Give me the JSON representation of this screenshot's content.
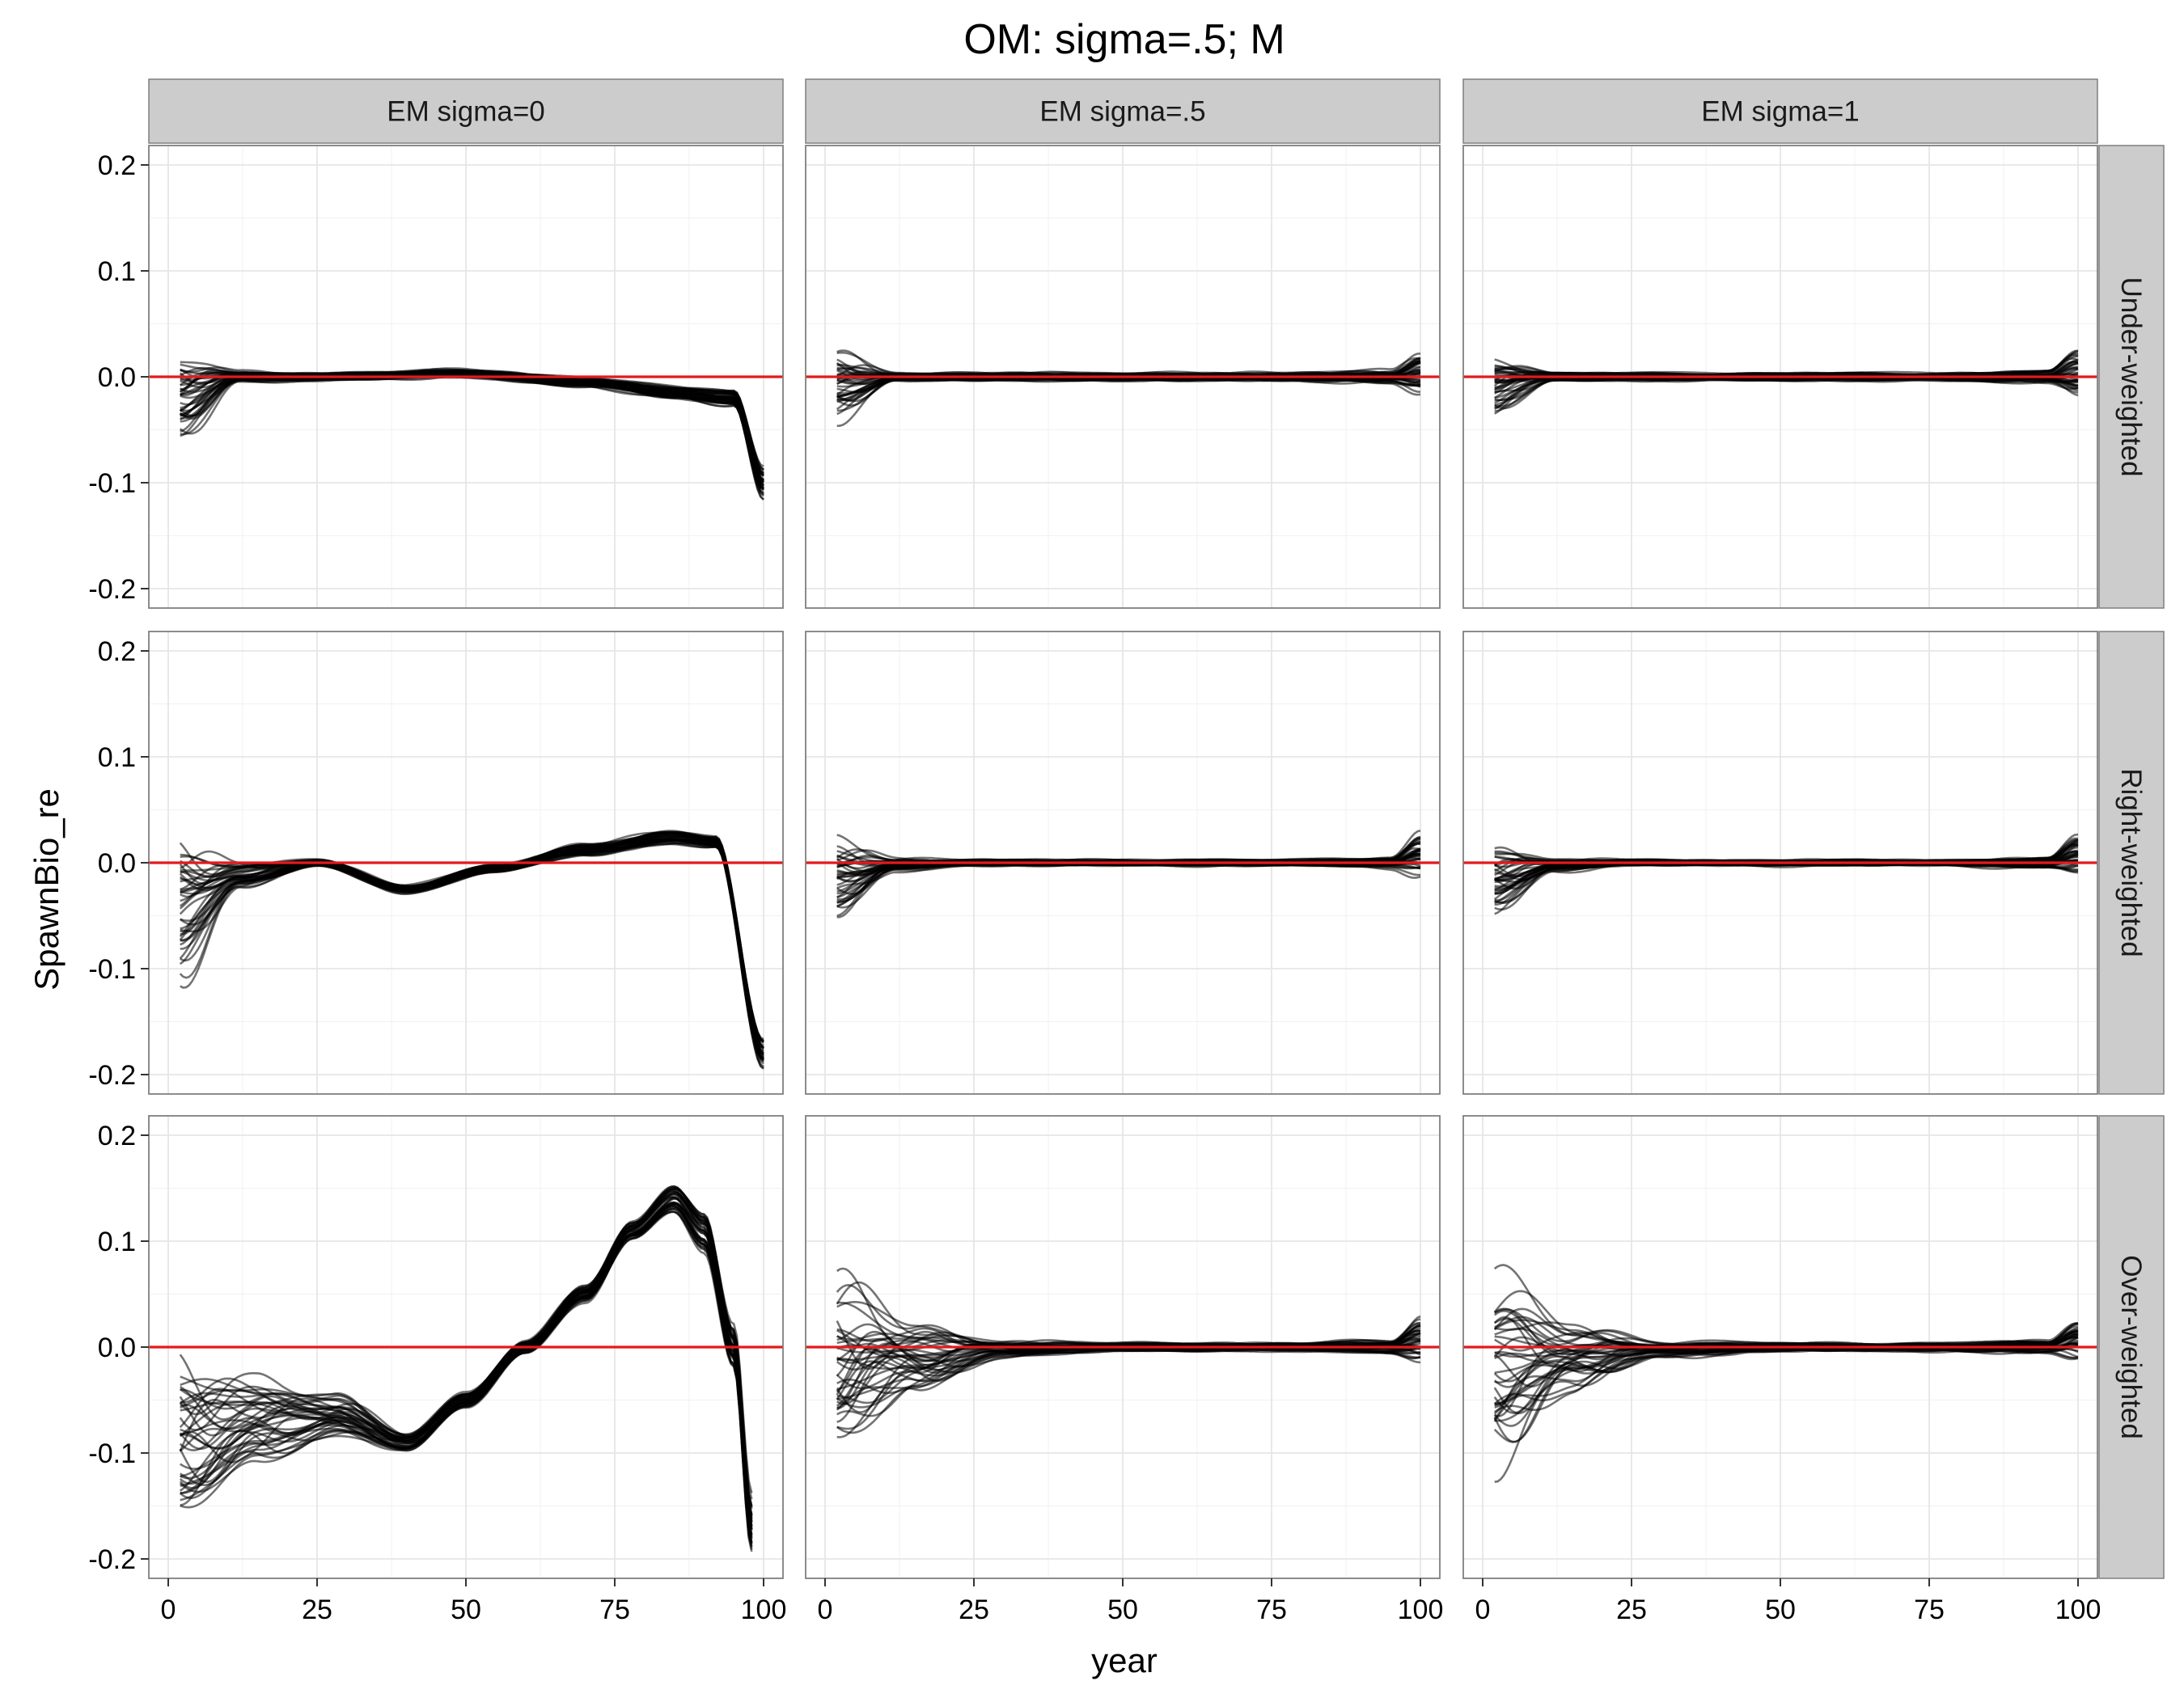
{
  "chart_data": {
    "type": "line",
    "title": "OM: sigma=.5; M",
    "xlabel": "year",
    "ylabel": "SpawnBio_re",
    "xlim": [
      0,
      100
    ],
    "ylim": [
      -0.2,
      0.2
    ],
    "x_ticks": [
      "0",
      "25",
      "50",
      "75",
      "100"
    ],
    "y_ticks": [
      "-0.2",
      "-0.1",
      "0.0",
      "0.1",
      "0.2"
    ],
    "column_facets": [
      "EM sigma=0",
      "EM sigma=.5",
      "EM sigma=1"
    ],
    "row_facets": [
      "Under-weighted",
      "Right-weighted",
      "Over-weighted"
    ],
    "reference_line": {
      "y": 0,
      "color": "#e41a1c"
    },
    "line_color": "#000000",
    "line_opacity": 0.55,
    "grid": true,
    "panels": [
      {
        "row": "Under-weighted",
        "col": "EM sigma=0",
        "knots_x": [
          2,
          12,
          25,
          50,
          70,
          85,
          95,
          100
        ],
        "center": [
          -0.02,
          0.0,
          0.0,
          0.003,
          -0.005,
          -0.015,
          -0.02,
          -0.1
        ],
        "spread": [
          0.04,
          0.005,
          0.004,
          0.004,
          0.005,
          0.006,
          0.008,
          0.015
        ]
      },
      {
        "row": "Under-weighted",
        "col": "EM sigma=.5",
        "knots_x": [
          2,
          12,
          25,
          50,
          75,
          95,
          100
        ],
        "center": [
          -0.008,
          0.0,
          0.0,
          0.0,
          0.0,
          0.0,
          0.004
        ],
        "spread": [
          0.03,
          0.004,
          0.004,
          0.004,
          0.004,
          0.006,
          0.02
        ]
      },
      {
        "row": "Under-weighted",
        "col": "EM sigma=1",
        "knots_x": [
          2,
          12,
          25,
          50,
          75,
          95,
          100
        ],
        "center": [
          -0.008,
          0.0,
          0.0,
          0.0,
          0.0,
          0.0,
          0.005
        ],
        "spread": [
          0.03,
          0.004,
          0.004,
          0.004,
          0.004,
          0.006,
          0.02
        ]
      },
      {
        "row": "Right-weighted",
        "col": "EM sigma=0",
        "knots_x": [
          2,
          12,
          25,
          40,
          55,
          70,
          85,
          92,
          100
        ],
        "center": [
          -0.045,
          -0.012,
          0.0,
          -0.025,
          -0.005,
          0.012,
          0.024,
          0.02,
          -0.18
        ],
        "spread": [
          0.06,
          0.012,
          0.004,
          0.004,
          0.004,
          0.006,
          0.006,
          0.006,
          0.015
        ]
      },
      {
        "row": "Right-weighted",
        "col": "EM sigma=.5",
        "knots_x": [
          2,
          12,
          25,
          50,
          75,
          95,
          100
        ],
        "center": [
          -0.015,
          -0.002,
          0.0,
          0.0,
          0.0,
          0.0,
          0.008
        ],
        "spread": [
          0.035,
          0.006,
          0.003,
          0.003,
          0.003,
          0.005,
          0.018
        ]
      },
      {
        "row": "Right-weighted",
        "col": "EM sigma=1",
        "knots_x": [
          2,
          12,
          25,
          50,
          75,
          95,
          100
        ],
        "center": [
          -0.015,
          -0.002,
          0.0,
          0.0,
          0.0,
          0.0,
          0.008
        ],
        "spread": [
          0.035,
          0.006,
          0.003,
          0.003,
          0.003,
          0.005,
          0.018
        ]
      },
      {
        "row": "Over-weighted",
        "col": "EM sigma=0",
        "knots_x": [
          2,
          15,
          28,
          40,
          50,
          60,
          70,
          78,
          85,
          90,
          95,
          98
        ],
        "center": [
          -0.09,
          -0.07,
          -0.065,
          -0.09,
          -0.05,
          0.0,
          0.05,
          0.11,
          0.14,
          0.11,
          0.0,
          -0.17
        ],
        "spread": [
          0.08,
          0.04,
          0.02,
          0.01,
          0.008,
          0.006,
          0.008,
          0.01,
          0.015,
          0.02,
          0.02,
          0.025
        ]
      },
      {
        "row": "Over-weighted",
        "col": "EM sigma=.5",
        "knots_x": [
          2,
          15,
          30,
          50,
          75,
          95,
          100
        ],
        "center": [
          -0.02,
          -0.01,
          -0.002,
          0.0,
          0.0,
          0.0,
          0.008
        ],
        "spread": [
          0.08,
          0.03,
          0.008,
          0.004,
          0.004,
          0.006,
          0.02
        ]
      },
      {
        "row": "Over-weighted",
        "col": "EM sigma=1",
        "knots_x": [
          2,
          15,
          30,
          50,
          75,
          95,
          100
        ],
        "center": [
          -0.02,
          -0.01,
          -0.002,
          0.0,
          0.0,
          0.0,
          0.008
        ],
        "spread": [
          0.08,
          0.03,
          0.008,
          0.004,
          0.004,
          0.006,
          0.02
        ]
      }
    ]
  }
}
